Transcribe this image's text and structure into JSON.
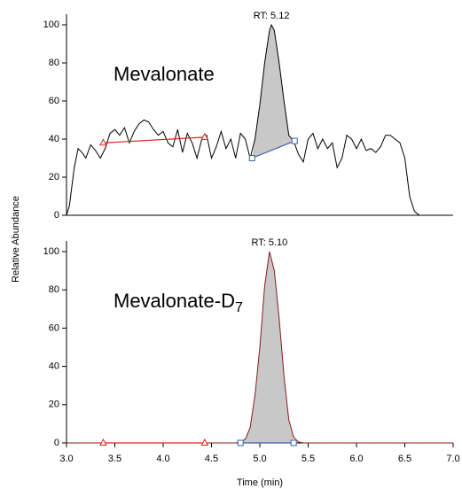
{
  "chart_data": [
    {
      "type": "line",
      "annotation": "Mevalonate",
      "peak_label": "RT: 5.12",
      "peak_x": 5.12,
      "ylabel": "Relative Abundance",
      "xlim": [
        3.0,
        7.0
      ],
      "ylim": [
        0,
        100
      ],
      "yticks": [
        0,
        20,
        40,
        60,
        80,
        100
      ],
      "color": "#000000",
      "x": [
        3.0,
        3.03,
        3.08,
        3.12,
        3.16,
        3.2,
        3.25,
        3.3,
        3.35,
        3.4,
        3.45,
        3.5,
        3.55,
        3.6,
        3.65,
        3.7,
        3.75,
        3.8,
        3.85,
        3.9,
        3.95,
        4.0,
        4.05,
        4.1,
        4.15,
        4.2,
        4.25,
        4.3,
        4.35,
        4.4,
        4.45,
        4.5,
        4.55,
        4.6,
        4.65,
        4.7,
        4.75,
        4.8,
        4.85,
        4.9,
        4.95,
        5.0,
        5.05,
        5.1,
        5.12,
        5.15,
        5.2,
        5.25,
        5.3,
        5.35,
        5.4,
        5.45,
        5.5,
        5.55,
        5.6,
        5.65,
        5.7,
        5.75,
        5.8,
        5.85,
        5.9,
        5.95,
        6.0,
        6.05,
        6.1,
        6.15,
        6.2,
        6.25,
        6.3,
        6.35,
        6.4,
        6.45,
        6.5,
        6.55,
        6.6,
        6.65,
        7.0
      ],
      "values": [
        0,
        5,
        25,
        35,
        33,
        30,
        37,
        34,
        30,
        35,
        43,
        45,
        42,
        46,
        38,
        44,
        48,
        50,
        49,
        45,
        42,
        44,
        38,
        36,
        45,
        33,
        43,
        38,
        30,
        40,
        42,
        30,
        36,
        44,
        35,
        40,
        30,
        43,
        40,
        30,
        40,
        58,
        80,
        97,
        100,
        97,
        80,
        60,
        42,
        39,
        32,
        28,
        40,
        43,
        35,
        40,
        35,
        38,
        25,
        30,
        42,
        40,
        35,
        40,
        34,
        35,
        33,
        36,
        42,
        42,
        40,
        38,
        30,
        10,
        2,
        0,
        0
      ],
      "peak_fill": "#c8c8c8",
      "peak_baseline": {
        "x": [
          4.92,
          5.36
        ],
        "values": [
          30,
          39
        ],
        "color": "#3a5fb0"
      },
      "reference_points": {
        "x": [
          3.38,
          4.43
        ],
        "values": [
          38,
          41
        ],
        "color": "#e02020"
      }
    },
    {
      "type": "line",
      "annotation": "Mevalonate-D",
      "annotation_subscript": "7",
      "peak_label": "RT: 5.10",
      "peak_x": 5.1,
      "xlabel": "Time (min)",
      "xlim": [
        3.0,
        7.0
      ],
      "ylim": [
        0,
        100
      ],
      "yticks": [
        0,
        20,
        40,
        60,
        80,
        100
      ],
      "xticks": [
        {
          "value": 3.0,
          "label": "3.0"
        },
        {
          "value": 3.5,
          "label": "3.5"
        },
        {
          "value": 4.0,
          "label": "4.0"
        },
        {
          "value": 4.5,
          "label": "4.5"
        },
        {
          "value": 5.0,
          "label": "5.0"
        },
        {
          "value": 5.5,
          "label": "5.5"
        },
        {
          "value": 6.0,
          "label": "6.0"
        },
        {
          "value": 6.5,
          "label": "6.5"
        },
        {
          "value": 7.0,
          "label": "7.0"
        }
      ],
      "color": "#8b1a1a",
      "x": [
        3.0,
        4.75,
        4.8,
        4.85,
        4.9,
        4.95,
        5.0,
        5.05,
        5.1,
        5.15,
        5.2,
        5.25,
        5.3,
        5.35,
        5.4,
        5.45,
        7.0
      ],
      "values": [
        0,
        0,
        0.5,
        2,
        8,
        25,
        50,
        82,
        100,
        90,
        65,
        35,
        12,
        3,
        0.5,
        0,
        0
      ],
      "peak_fill": "#c8c8c8",
      "peak_baseline": {
        "x": [
          4.8,
          5.35
        ],
        "values": [
          0,
          0
        ],
        "color": "#3a5fb0"
      },
      "reference_points": {
        "x": [
          3.38,
          4.43
        ],
        "values": [
          0,
          0
        ],
        "color": "#e02020"
      }
    }
  ]
}
